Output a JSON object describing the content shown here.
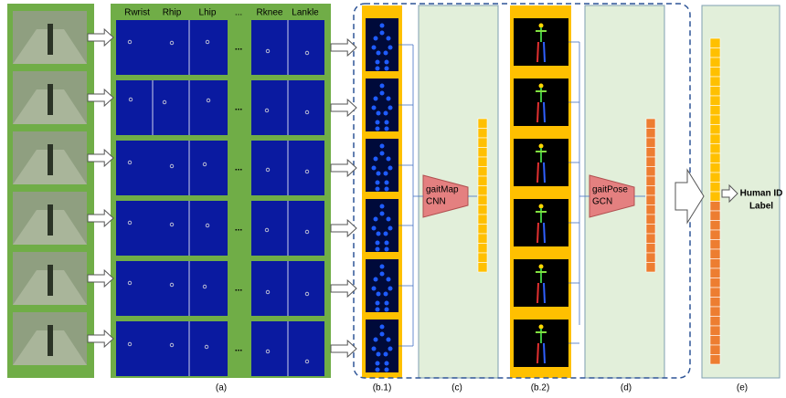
{
  "panel_a": {
    "headers": [
      "Rwrist",
      "Rhip",
      "Lhip",
      "...",
      "Rknee",
      "Lankle"
    ],
    "row_ellipsis": "..."
  },
  "blocks": {
    "cnn": [
      "gaitMap",
      "CNN"
    ],
    "gcn": [
      "gaitPose",
      "GCN"
    ]
  },
  "output": [
    "Human ID",
    "Label"
  ],
  "captions": [
    "(a)",
    "(b.1)",
    "(c)",
    "(b.2)",
    "(d)",
    "(e)"
  ]
}
